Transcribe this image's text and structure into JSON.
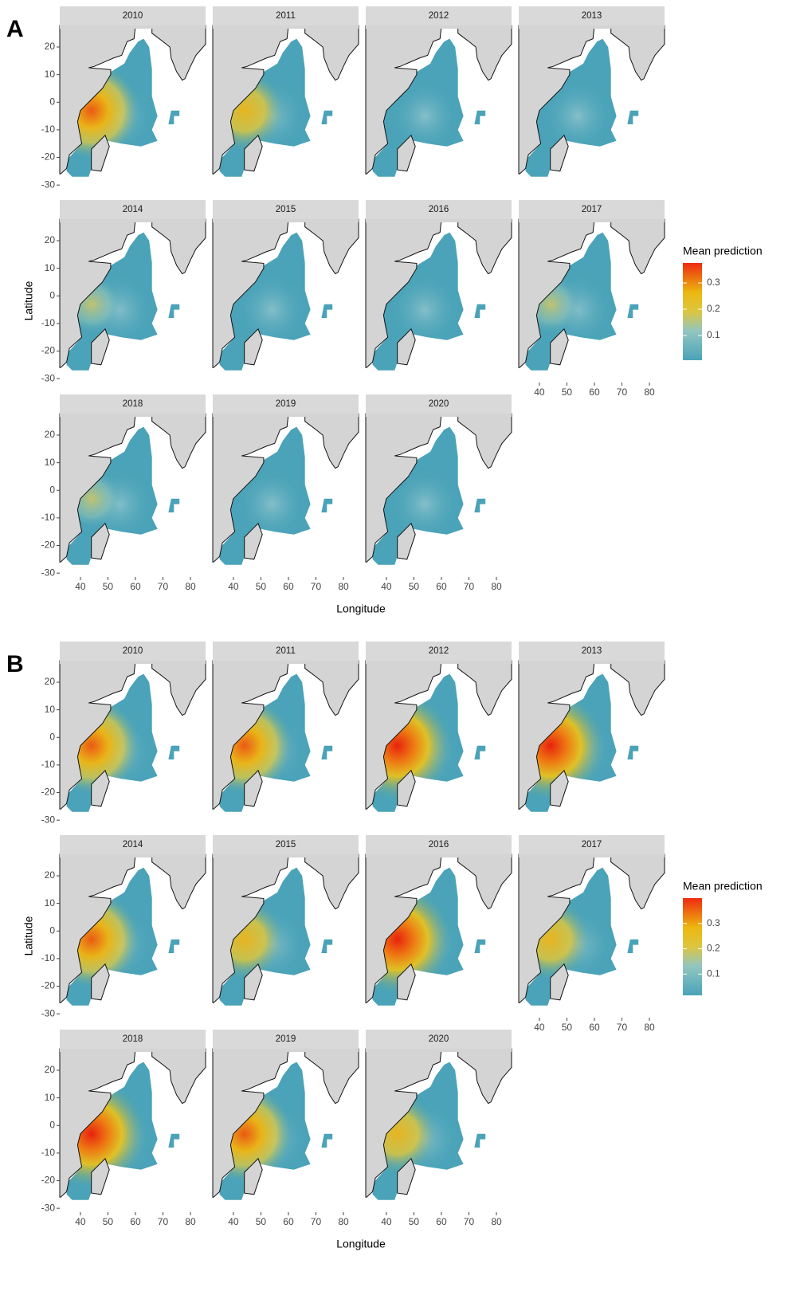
{
  "panels": [
    {
      "label": "A",
      "facets": [
        "2010",
        "2011",
        "2012",
        "2013",
        "2014",
        "2015",
        "2016",
        "2017",
        "2018",
        "2019",
        "2020"
      ],
      "x_label": "Longitude",
      "y_label": "Latitude",
      "xlim": [
        32.5,
        85.5
      ],
      "ylim": [
        -31.4,
        27.8
      ],
      "x_ticks": [
        40,
        50,
        60,
        70,
        80
      ],
      "y_ticks": [
        20,
        10,
        0,
        -10,
        -20,
        -30
      ],
      "legend": {
        "title": "Mean prediction",
        "lim": [
          0.006,
          0.376
        ],
        "ticks": [
          0.1,
          0.2,
          0.3
        ]
      }
    },
    {
      "label": "B",
      "facets": [
        "2010",
        "2011",
        "2012",
        "2013",
        "2014",
        "2015",
        "2016",
        "2017",
        "2018",
        "2019",
        "2020"
      ],
      "x_label": "Longitude",
      "y_label": "Latitude",
      "xlim": [
        32.5,
        85.5
      ],
      "ylim": [
        -31.4,
        27.8
      ],
      "x_ticks": [
        40,
        50,
        60,
        70,
        80
      ],
      "y_ticks": [
        20,
        10,
        0,
        -10,
        -20,
        -30
      ],
      "legend": {
        "title": "Mean prediction",
        "lim": [
          0.016,
          0.4
        ],
        "ticks": [
          0.1,
          0.2,
          0.3
        ]
      }
    }
  ]
}
